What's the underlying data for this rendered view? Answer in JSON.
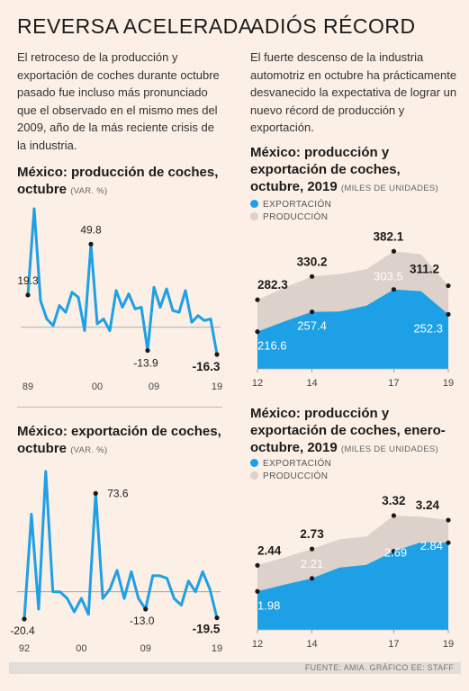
{
  "left": {
    "headline": "REVERSA ACELERADA",
    "intro": "El retroceso de la producción y exportación de coches durante octubre pasado fue incluso más pronunciado que el observado en el mismo mes del 2009, año de la más reciente crisis de la industria."
  },
  "right": {
    "headline": "ADIÓS RÉCORD",
    "intro": "El fuerte descenso de la industria automotriz en octubre ha prácticamente desvanecido la expectativa de lograr un nuevo récord de producción y exportación."
  },
  "colors": {
    "accent": "#1da0e6",
    "area_production": "#dcd1cb",
    "background": "#fbefe6"
  },
  "chart_data": [
    {
      "type": "line",
      "title": "México: producción de coches, octubre",
      "unit_label": "(VAR. %)",
      "x": [
        1989,
        1990,
        1991,
        1992,
        1993,
        1994,
        1995,
        1996,
        1997,
        1998,
        1999,
        2000,
        2001,
        2002,
        2003,
        2004,
        2005,
        2006,
        2007,
        2008,
        2009,
        2010,
        2011,
        2012,
        2013,
        2014,
        2015,
        2016,
        2017,
        2018,
        2019
      ],
      "values": [
        19.3,
        71.0,
        16.0,
        5.0,
        1.0,
        13.0,
        9.0,
        21.0,
        18.0,
        -2.0,
        49.8,
        2.0,
        5.0,
        -2.0,
        22.0,
        12.0,
        20.0,
        11.0,
        12.0,
        -13.9,
        24.0,
        12.0,
        23.0,
        10.0,
        9.0,
        22.0,
        3.0,
        7.0,
        4.0,
        5.0,
        -16.3
      ],
      "labels": [
        {
          "text": "19.3",
          "index": 0
        },
        {
          "text": "49.8",
          "index": 10
        },
        {
          "text": "-13.9",
          "index": 19
        },
        {
          "text": "-16.3",
          "index": 30
        }
      ],
      "xticks": [
        "89",
        "00",
        "09",
        "19"
      ]
    },
    {
      "type": "line",
      "title": "México: exportación de coches, octubre",
      "unit_label": "(VAR. %)",
      "x": [
        1992,
        1993,
        1994,
        1995,
        1996,
        1997,
        1998,
        1999,
        2000,
        2001,
        2002,
        2003,
        2004,
        2005,
        2006,
        2007,
        2008,
        2009,
        2010,
        2011,
        2012,
        2013,
        2014,
        2015,
        2016,
        2017,
        2018,
        2019
      ],
      "values": [
        -20.4,
        58.0,
        -13.0,
        90.0,
        0.0,
        0.0,
        -5.0,
        -15.0,
        -5.0,
        -17.0,
        73.6,
        -5.0,
        2.0,
        16.0,
        -5.0,
        15.0,
        -5.0,
        -13.0,
        12.0,
        12.0,
        10.0,
        -5.0,
        -10.0,
        8.0,
        0.0,
        15.0,
        2.0,
        -19.5
      ],
      "labels": [
        {
          "text": "-20.4",
          "index": 0
        },
        {
          "text": "73.6",
          "index": 10
        },
        {
          "text": "-13.0",
          "index": 17
        },
        {
          "text": "-19.5",
          "index": 27
        }
      ],
      "xticks": [
        "92",
        "00",
        "09",
        "19"
      ]
    },
    {
      "type": "area",
      "title": "México: producción y exportación de coches, octubre, 2019",
      "unit_label": "(MILES DE UNIDADES)",
      "categories": [
        "2012",
        "2013",
        "2014",
        "2015",
        "2016",
        "2017",
        "2018",
        "2019"
      ],
      "series": [
        {
          "name": "EXPORTACIÓN",
          "values": [
            216.6,
            238.0,
            257.4,
            258.0,
            270.0,
            303.5,
            300.0,
            252.3
          ]
        },
        {
          "name": "PRODUCCIÓN",
          "values": [
            282.3,
            307.0,
            330.2,
            335.0,
            345.0,
            382.1,
            376.0,
            311.2
          ]
        }
      ],
      "labels": [
        "216.6",
        "257.4",
        "303.5",
        "252.3",
        "282.3",
        "330.2",
        "382.1",
        "311.2"
      ],
      "xticks": [
        "12",
        "14",
        "17",
        "19"
      ]
    },
    {
      "type": "area",
      "title": "México: producción y exportación de coches, enero-octubre, 2019",
      "unit_label": "(MILES DE UNIDADES)",
      "categories": [
        "2012",
        "2013",
        "2014",
        "2015",
        "2016",
        "2017",
        "2018",
        "2019"
      ],
      "series": [
        {
          "name": "EXPORTACIÓN",
          "values": [
            1.98,
            2.1,
            2.21,
            2.4,
            2.45,
            2.69,
            2.85,
            2.84
          ]
        },
        {
          "name": "PRODUCCIÓN",
          "values": [
            2.44,
            2.58,
            2.73,
            2.9,
            2.95,
            3.32,
            3.3,
            3.24
          ]
        }
      ],
      "labels": [
        "1.98",
        "2.21",
        "2.69",
        "2.84",
        "2.44",
        "2.73",
        "3.32",
        "3.24"
      ],
      "xticks": [
        "12",
        "14",
        "17",
        "19"
      ]
    }
  ],
  "footer": "FUENTE: AMIA. GRÁFICO EE: STAFF"
}
